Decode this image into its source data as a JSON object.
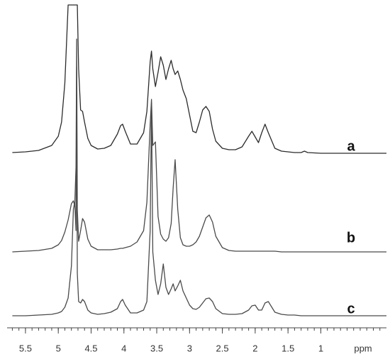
{
  "chart_data": {
    "type": "line",
    "x_label": "ppm",
    "xlim": [
      5.78,
      0.0
    ],
    "xticks": [
      5.5,
      5.0,
      4.5,
      4.0,
      3.5,
      3.0,
      2.5,
      2.0,
      1.5,
      1.0
    ],
    "x": [
      5.7,
      5.5,
      5.3,
      5.1,
      5.0,
      4.95,
      4.9,
      4.85,
      4.8,
      4.77,
      4.75,
      4.73,
      4.72,
      4.71,
      4.69,
      4.66,
      4.63,
      4.6,
      4.55,
      4.5,
      4.4,
      4.3,
      4.2,
      4.1,
      4.05,
      4.02,
      3.98,
      3.9,
      3.8,
      3.7,
      3.65,
      3.6,
      3.58,
      3.56,
      3.52,
      3.48,
      3.44,
      3.4,
      3.36,
      3.32,
      3.28,
      3.25,
      3.22,
      3.18,
      3.14,
      3.1,
      3.05,
      3.0,
      2.95,
      2.9,
      2.85,
      2.8,
      2.75,
      2.7,
      2.65,
      2.6,
      2.5,
      2.4,
      2.3,
      2.2,
      2.1,
      2.05,
      2.0,
      1.95,
      1.9,
      1.85,
      1.8,
      1.7,
      1.6,
      1.5,
      1.4,
      1.3,
      1.25,
      1.2,
      1.0,
      0.8,
      0.5,
      0.2,
      0.0
    ],
    "series": [
      {
        "name": "a",
        "color": "#2b2b2b",
        "values": [
          2,
          3,
          5,
          12,
          25,
          45,
          100,
          210,
          210,
          210,
          210,
          210,
          210,
          210,
          120,
          62,
          60,
          45,
          22,
          12,
          7,
          8,
          12,
          28,
          40,
          42,
          32,
          14,
          14,
          30,
          60,
          130,
          145,
          120,
          95,
          115,
          137,
          125,
          105,
          120,
          132,
          120,
          112,
          117,
          105,
          90,
          78,
          55,
          32,
          30,
          45,
          62,
          67,
          60,
          35,
          18,
          8,
          6,
          6,
          10,
          25,
          32,
          24,
          16,
          30,
          42,
          30,
          8,
          4,
          3,
          2,
          2,
          4,
          2,
          1,
          1,
          1,
          1,
          1
        ]
      },
      {
        "name": "b",
        "color": "#4a4a4a",
        "values": [
          0,
          1,
          2,
          5,
          10,
          16,
          28,
          45,
          68,
          72,
          65,
          120,
          300,
          60,
          15,
          30,
          47,
          42,
          18,
          8,
          3,
          3,
          3,
          4,
          5,
          5,
          6,
          8,
          14,
          30,
          70,
          180,
          215,
          150,
          155,
          50,
          25,
          18,
          15,
          20,
          40,
          90,
          130,
          60,
          20,
          10,
          8,
          8,
          10,
          14,
          22,
          35,
          48,
          52,
          42,
          22,
          6,
          2,
          1,
          1,
          1,
          1,
          1,
          1,
          1,
          1,
          1,
          1,
          0,
          0,
          0,
          0,
          0,
          0,
          0,
          0,
          0,
          0,
          0
        ]
      },
      {
        "name": "c",
        "color": "#4a4a4a",
        "values": [
          0,
          0,
          1,
          2,
          4,
          6,
          12,
          25,
          70,
          150,
          160,
          120,
          350,
          60,
          20,
          18,
          23,
          20,
          8,
          4,
          2,
          3,
          5,
          10,
          20,
          23,
          15,
          4,
          4,
          8,
          20,
          120,
          300,
          90,
          50,
          30,
          45,
          73,
          40,
          30,
          38,
          45,
          35,
          42,
          50,
          35,
          25,
          15,
          10,
          9,
          12,
          18,
          24,
          25,
          20,
          10,
          3,
          2,
          2,
          3,
          8,
          14,
          15,
          8,
          8,
          18,
          20,
          5,
          2,
          1,
          1,
          0,
          0,
          0,
          0,
          0,
          0,
          0,
          0
        ]
      }
    ]
  }
}
